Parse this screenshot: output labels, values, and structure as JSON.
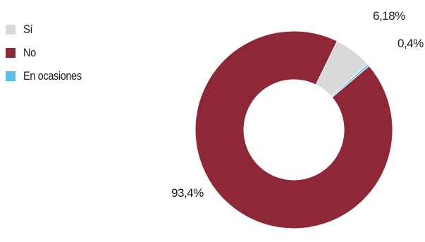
{
  "chart_data": {
    "type": "pie",
    "donut": true,
    "categories": [
      "Sí",
      "No",
      "En ocasiones"
    ],
    "values": [
      6.18,
      93.4,
      0.4
    ],
    "data_labels": [
      "6,18%",
      "93,4%",
      "0,4%"
    ],
    "colors": [
      "#d9d9d9",
      "#8e2736",
      "#5bc0eb"
    ],
    "legend_placement": "top-left",
    "title": ""
  }
}
